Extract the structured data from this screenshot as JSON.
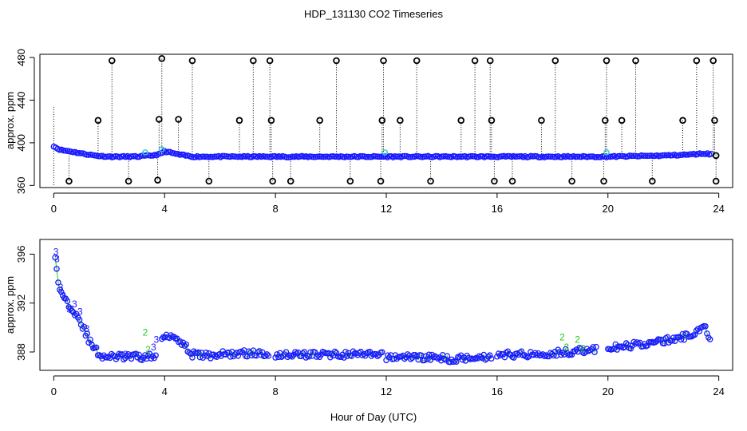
{
  "figure_title": "HDP_131130  CO2 Timeseries",
  "shared_xlabel": "Hour of Day (UTC)",
  "colors": {
    "blue": "#1a1aff",
    "green": "#22cc22",
    "cyan": "#33c8c8",
    "black": "#000000"
  },
  "chart_data": [
    {
      "type": "scatter",
      "panel": "top",
      "ylabel": "approx. ppm",
      "xlim": [
        -0.5,
        24.5
      ],
      "ylim": [
        358,
        483
      ],
      "xticks": [
        0,
        4,
        8,
        12,
        16,
        20,
        24
      ],
      "yticks": [
        360,
        400,
        440,
        480
      ],
      "baseline": {
        "x": [
          0,
          0.1,
          0.3,
          0.6,
          1.0,
          1.5,
          2.0,
          3.0,
          3.5,
          3.8,
          4.0,
          4.5,
          5.0,
          6.0,
          8.0,
          12.0,
          16.0,
          20.0,
          22.0,
          23.0,
          23.5,
          23.8
        ],
        "y": [
          397,
          395,
          393,
          392,
          390,
          388,
          387,
          387,
          388,
          389,
          392,
          389,
          387,
          387,
          387,
          387,
          387,
          387,
          388,
          389,
          390,
          389
        ]
      },
      "outliers_high": {
        "x": [
          1.6,
          2.1,
          3.8,
          3.9,
          4.5,
          5.0,
          6.7,
          7.2,
          7.8,
          7.85,
          9.6,
          10.2,
          11.85,
          11.9,
          12.5,
          13.1,
          14.7,
          15.2,
          15.75,
          15.8,
          17.6,
          18.1,
          19.9,
          19.95,
          20.5,
          21.0,
          22.7,
          23.2,
          23.8,
          23.85
        ],
        "y": [
          421,
          477,
          422,
          479,
          422,
          477,
          421,
          477,
          477,
          421,
          421,
          477,
          421,
          477,
          421,
          477,
          421,
          477,
          477,
          421,
          421,
          477,
          421,
          477,
          421,
          477,
          421,
          477,
          477,
          421
        ]
      },
      "outliers_low": {
        "x": [
          0.55,
          2.7,
          3.75,
          5.6,
          7.9,
          8.55,
          10.7,
          11.8,
          13.6,
          15.9,
          16.55,
          18.7,
          19.85,
          21.6,
          23.9
        ],
        "y": [
          364,
          364,
          365,
          364,
          364,
          364,
          364,
          364,
          364,
          364,
          364,
          364,
          364,
          364,
          364
        ]
      }
    },
    {
      "type": "scatter",
      "panel": "bottom",
      "ylabel": "approx. ppm",
      "xlim": [
        -0.5,
        24.5
      ],
      "ylim": [
        386.5,
        397.2
      ],
      "xticks": [
        0,
        4,
        8,
        12,
        16,
        20,
        24
      ],
      "yticks": [
        388,
        392,
        396
      ],
      "segments": [
        {
          "x": [
            0.05,
            0.15,
            0.3,
            0.5,
            0.7,
            0.9,
            1.1,
            1.3,
            1.5,
            1.7,
            2.0,
            2.5,
            3.0,
            3.5,
            3.7
          ],
          "y": [
            396.0,
            393.5,
            392.8,
            392.0,
            391.5,
            390.8,
            389.8,
            388.8,
            388.2,
            387.7,
            387.6,
            387.6,
            387.6,
            387.6,
            387.6
          ]
        },
        {
          "x": [
            3.9,
            4.0,
            4.2,
            4.4,
            4.6,
            4.8,
            5.0,
            5.5,
            6.0,
            7.0,
            7.8
          ],
          "y": [
            389.0,
            389.4,
            389.4,
            389.2,
            388.9,
            388.3,
            387.8,
            387.7,
            387.8,
            387.9,
            387.8
          ]
        },
        {
          "x": [
            8.0,
            9.0,
            10.0,
            11.0,
            11.9
          ],
          "y": [
            387.8,
            387.8,
            387.8,
            387.8,
            387.7
          ]
        },
        {
          "x": [
            12.0,
            13.0,
            14.0,
            14.5,
            15.0,
            15.8
          ],
          "y": [
            387.6,
            387.6,
            387.5,
            387.4,
            387.6,
            387.6
          ]
        },
        {
          "x": [
            16.0,
            17.0,
            18.0,
            18.5,
            19.0,
            19.6
          ],
          "y": [
            387.8,
            387.8,
            387.9,
            388.0,
            388.1,
            388.2
          ]
        },
        {
          "x": [
            20.0,
            20.5,
            21.0,
            21.5,
            22.0,
            22.5,
            23.0,
            23.3,
            23.5,
            23.7
          ],
          "y": [
            388.3,
            388.4,
            388.6,
            388.7,
            388.9,
            389.1,
            389.4,
            389.9,
            389.9,
            389.2
          ]
        }
      ],
      "labels_3": {
        "x": [
          0.08,
          0.12,
          0.25,
          0.35,
          0.55,
          0.75,
          0.95,
          1.2,
          1.4,
          2.6,
          3.6,
          3.7
        ],
        "y": [
          396.2,
          395.6,
          393.3,
          392.6,
          391.5,
          391.9,
          391.3,
          389.9,
          388.5,
          387.8,
          388.4,
          389.0
        ]
      },
      "labels_2": {
        "x": [
          3.3,
          3.4,
          18.35,
          18.5,
          18.9,
          19.1
        ],
        "y": [
          389.6,
          388.2,
          389.2,
          388.4,
          389.0,
          388.3
        ]
      }
    }
  ]
}
